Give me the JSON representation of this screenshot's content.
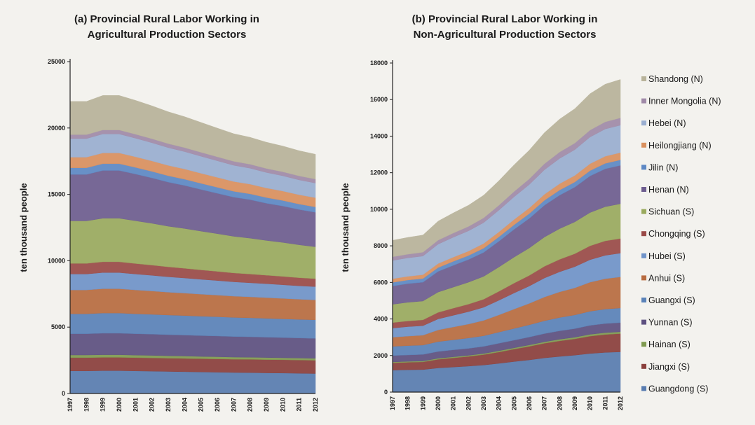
{
  "chart_data": [
    {
      "type": "stacked_area",
      "title": [
        "(a) Provincial Rural Labor Working in",
        "Agricultural Production Sectors"
      ],
      "ylabel": "ten thousand people",
      "categories": [
        "1997",
        "1998",
        "1999",
        "2000",
        "2001",
        "2002",
        "2003",
        "2004",
        "2005",
        "2006",
        "2007",
        "2008",
        "2009",
        "2010",
        "2011",
        "2012"
      ],
      "ylim": [
        0,
        25000
      ],
      "yticks": [
        0,
        5000,
        10000,
        15000,
        20000,
        25000
      ],
      "series": [
        {
          "color": "#587cb0",
          "values": [
            1700,
            1700,
            1720,
            1720,
            1700,
            1680,
            1660,
            1640,
            1620,
            1600,
            1580,
            1570,
            1550,
            1540,
            1520,
            1500
          ]
        },
        {
          "color": "#8a3f3c",
          "values": [
            1000,
            1000,
            1000,
            1000,
            1000,
            1000,
            1000,
            1000,
            1000,
            1000,
            1000,
            1000,
            1000,
            1000,
            1000,
            1000
          ]
        },
        {
          "color": "#7f9a50",
          "values": [
            200,
            200,
            200,
            200,
            190,
            190,
            180,
            180,
            170,
            170,
            160,
            160,
            160,
            150,
            150,
            150
          ]
        },
        {
          "color": "#5d5080",
          "values": [
            1600,
            1600,
            1620,
            1620,
            1610,
            1600,
            1590,
            1580,
            1570,
            1560,
            1550,
            1540,
            1530,
            1520,
            1510,
            1500
          ]
        },
        {
          "color": "#5a82b8",
          "values": [
            1500,
            1500,
            1520,
            1520,
            1500,
            1490,
            1480,
            1470,
            1460,
            1450,
            1440,
            1430,
            1420,
            1410,
            1400,
            1400
          ]
        },
        {
          "color": "#b86c40",
          "values": [
            1800,
            1800,
            1830,
            1830,
            1800,
            1760,
            1720,
            1690,
            1660,
            1630,
            1600,
            1580,
            1560,
            1540,
            1520,
            1500
          ]
        },
        {
          "color": "#6f93c9",
          "values": [
            1200,
            1200,
            1220,
            1220,
            1200,
            1180,
            1160,
            1140,
            1120,
            1100,
            1080,
            1060,
            1050,
            1030,
            1010,
            1000
          ]
        },
        {
          "color": "#9a4a48",
          "values": [
            800,
            800,
            810,
            810,
            790,
            770,
            750,
            730,
            710,
            690,
            670,
            660,
            640,
            630,
            610,
            600
          ]
        },
        {
          "color": "#9aaa5e",
          "values": [
            3200,
            3200,
            3280,
            3280,
            3220,
            3150,
            3060,
            3000,
            2920,
            2840,
            2760,
            2700,
            2620,
            2560,
            2480,
            2400
          ]
        },
        {
          "color": "#6d5d8f",
          "values": [
            3500,
            3500,
            3600,
            3600,
            3520,
            3420,
            3320,
            3240,
            3140,
            3040,
            2950,
            2900,
            2800,
            2740,
            2660,
            2600
          ]
        },
        {
          "color": "#5d88c4",
          "values": [
            500,
            500,
            510,
            510,
            500,
            490,
            480,
            470,
            460,
            450,
            440,
            440,
            430,
            420,
            410,
            400
          ]
        },
        {
          "color": "#d9905e",
          "values": [
            800,
            800,
            810,
            810,
            800,
            790,
            780,
            770,
            760,
            750,
            740,
            730,
            720,
            710,
            700,
            700
          ]
        },
        {
          "color": "#9aaed0",
          "values": [
            1400,
            1400,
            1430,
            1430,
            1400,
            1370,
            1340,
            1310,
            1280,
            1250,
            1220,
            1200,
            1170,
            1150,
            1120,
            1100
          ]
        },
        {
          "color": "#a08aa8",
          "values": [
            300,
            300,
            300,
            300,
            300,
            300,
            300,
            300,
            300,
            300,
            300,
            300,
            300,
            300,
            300,
            300
          ]
        },
        {
          "color": "#b8b39a",
          "values": [
            2500,
            2500,
            2600,
            2600,
            2550,
            2480,
            2400,
            2330,
            2250,
            2160,
            2080,
            2030,
            1980,
            1940,
            1900,
            1870
          ]
        }
      ]
    },
    {
      "type": "stacked_area",
      "title": [
        "(b) Provincial Rural Labor Working in",
        "Non-Agricultural Production Sectors"
      ],
      "ylabel": "ten thousand people",
      "categories": [
        "1997",
        "1998",
        "1999",
        "2000",
        "2001",
        "2002",
        "2003",
        "2004",
        "2005",
        "2006",
        "2007",
        "2008",
        "2009",
        "2010",
        "2011",
        "2012"
      ],
      "ylim": [
        0,
        18000
      ],
      "yticks": [
        0,
        2000,
        4000,
        6000,
        8000,
        10000,
        12000,
        14000,
        16000,
        18000
      ],
      "legend": "right",
      "series": [
        {
          "name": "Guangdong (S)",
          "color": "#587cb0",
          "values": [
            1200,
            1220,
            1230,
            1320,
            1370,
            1420,
            1480,
            1570,
            1670,
            1760,
            1870,
            1950,
            2020,
            2110,
            2170,
            2200
          ]
        },
        {
          "name": "Jiangxi (S)",
          "color": "#8a3f3c",
          "values": [
            400,
            410,
            420,
            470,
            500,
            530,
            570,
            620,
            680,
            740,
            800,
            850,
            890,
            950,
            980,
            1000
          ]
        },
        {
          "name": "Hainan (S)",
          "color": "#7f9a50",
          "values": [
            50,
            50,
            50,
            60,
            60,
            60,
            60,
            70,
            70,
            80,
            80,
            90,
            90,
            100,
            100,
            100
          ]
        },
        {
          "name": "Yunnan (S)",
          "color": "#5d5080",
          "values": [
            350,
            350,
            360,
            370,
            380,
            380,
            390,
            410,
            420,
            430,
            450,
            460,
            470,
            490,
            500,
            500
          ]
        },
        {
          "name": "Guangxi (S)",
          "color": "#5a82b8",
          "values": [
            500,
            510,
            510,
            540,
            550,
            570,
            580,
            610,
            640,
            670,
            700,
            730,
            750,
            770,
            790,
            800
          ]
        },
        {
          "name": "Anhui (S)",
          "color": "#b86c40",
          "values": [
            500,
            520,
            540,
            640,
            700,
            760,
            840,
            940,
            1060,
            1170,
            1300,
            1400,
            1480,
            1590,
            1660,
            1700
          ]
        },
        {
          "name": "Hubei (S)",
          "color": "#6f93c9",
          "values": [
            500,
            520,
            520,
            600,
            640,
            680,
            720,
            800,
            880,
            950,
            1040,
            1100,
            1160,
            1230,
            1280,
            1300
          ]
        },
        {
          "name": "Chongqing (S)",
          "color": "#9a4a48",
          "values": [
            300,
            310,
            320,
            360,
            390,
            410,
            440,
            490,
            540,
            580,
            640,
            680,
            710,
            760,
            790,
            800
          ]
        },
        {
          "name": "Sichuan (S)",
          "color": "#9aaa5e",
          "values": [
            1000,
            1020,
            1030,
            1110,
            1150,
            1200,
            1250,
            1330,
            1420,
            1500,
            1600,
            1680,
            1740,
            1820,
            1870,
            1900
          ]
        },
        {
          "name": "Henan (N)",
          "color": "#6d5d8f",
          "values": [
            1000,
            1020,
            1030,
            1130,
            1190,
            1240,
            1310,
            1410,
            1520,
            1620,
            1740,
            1830,
            1900,
            2000,
            2070,
            2100
          ]
        },
        {
          "name": "Jilin (N)",
          "color": "#5d88c4",
          "values": [
            200,
            200,
            200,
            210,
            220,
            220,
            230,
            240,
            250,
            260,
            270,
            280,
            280,
            290,
            300,
            300
          ]
        },
        {
          "name": "Heilongjiang (N)",
          "color": "#d9905e",
          "values": [
            200,
            200,
            210,
            220,
            230,
            240,
            260,
            270,
            290,
            310,
            330,
            350,
            360,
            380,
            390,
            400
          ]
        },
        {
          "name": "Hebei (N)",
          "color": "#9aaed0",
          "values": [
            1000,
            1010,
            1020,
            1060,
            1090,
            1110,
            1140,
            1190,
            1240,
            1280,
            1340,
            1380,
            1410,
            1460,
            1490,
            1500
          ]
        },
        {
          "name": "Inner Mongolia (N)",
          "color": "#a08aa8",
          "values": [
            200,
            200,
            210,
            220,
            230,
            240,
            260,
            270,
            290,
            310,
            330,
            350,
            360,
            380,
            390,
            400
          ]
        },
        {
          "name": "Shandong (N)",
          "color": "#b8b39a",
          "values": [
            900,
            920,
            940,
            1040,
            1100,
            1160,
            1240,
            1340,
            1460,
            1570,
            1700,
            1800,
            1880,
            1990,
            2060,
            2100
          ]
        }
      ]
    }
  ]
}
